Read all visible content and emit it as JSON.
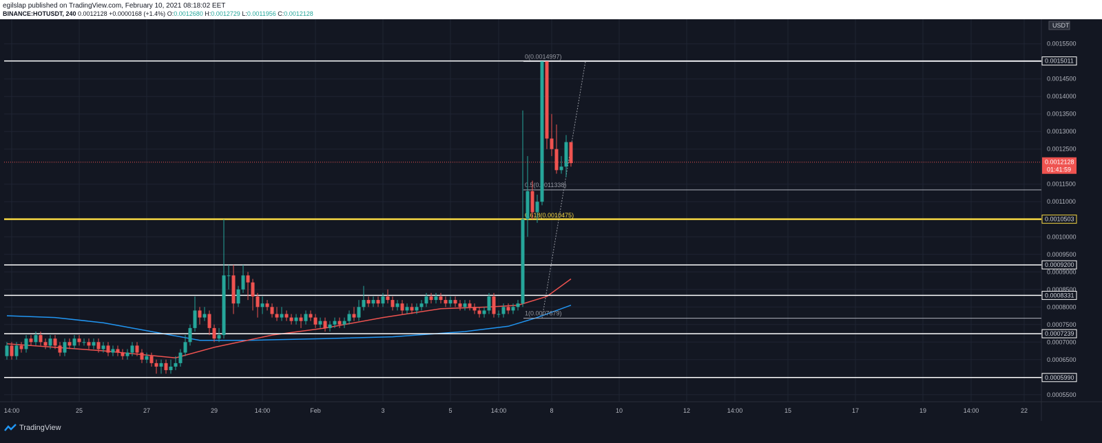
{
  "header": {
    "published_line": "egilslap published on TradingView.com, February 10, 2021 08:18:02 EET",
    "symbol": "BINANCE:HOTUSDT, 240",
    "price": "0.0012128",
    "change": "+0.0000168 (+1.4%)",
    "o_label": "O:",
    "o_value": "0.0012680",
    "h_label": "H:",
    "h_value": "0.0012729",
    "l_label": "L:",
    "l_value": "0.0011956",
    "c_label": "C:",
    "c_value": "0.0012128"
  },
  "footer": {
    "brand": "TradingView",
    "logo_icon": "tradingview-logo-icon"
  },
  "colors": {
    "background": "#131722",
    "up": "#26a69a",
    "down": "#ef5350",
    "ma_fast": "#ef5350",
    "ma_slow": "#2196f3",
    "fib_highlight": "#f5d742",
    "line": "#ffffff"
  },
  "chart_data": {
    "type": "candlestick",
    "currency": "USDT",
    "ylim": [
      0.00053,
      0.00162
    ],
    "price_scale_labels": [
      "0.0015500",
      "0.0015000",
      "0.0014500",
      "0.0014000",
      "0.0013500",
      "0.0013000",
      "0.0012500",
      "0.0011500",
      "0.0011000",
      "0.0010000",
      "0.0009500",
      "0.0009000",
      "0.0008500",
      "0.0008000",
      "0.0007500",
      "0.0007000",
      "0.0006500",
      "0.0005500"
    ],
    "x_ticks": [
      {
        "i": 1,
        "label": "14:00"
      },
      {
        "i": 15,
        "label": "25"
      },
      {
        "i": 29,
        "label": "27"
      },
      {
        "i": 43,
        "label": "29"
      },
      {
        "i": 53,
        "label": "14:00"
      },
      {
        "i": 64,
        "label": "Feb"
      },
      {
        "i": 78,
        "label": "3"
      },
      {
        "i": 92,
        "label": "5"
      },
      {
        "i": 102,
        "label": "14:00"
      },
      {
        "i": 113,
        "label": "8"
      },
      {
        "i": 127,
        "label": "10"
      },
      {
        "i": 141,
        "label": "12"
      },
      {
        "i": 151,
        "label": "14:00"
      },
      {
        "i": 162,
        "label": "15"
      },
      {
        "i": 176,
        "label": "17"
      },
      {
        "i": 190,
        "label": "19"
      },
      {
        "i": 200,
        "label": "14:00"
      },
      {
        "i": 211,
        "label": "22"
      }
    ],
    "horizontal_levels": [
      {
        "price": 0.0015011,
        "label": "0.0015011",
        "color": "#ffffff"
      },
      {
        "price": 0.0010503,
        "label": "0.0010503",
        "color": "#f5d742"
      },
      {
        "price": 0.00092,
        "label": "0.0009200",
        "color": "#ffffff"
      },
      {
        "price": 0.0008331,
        "label": "0.0008331",
        "color": "#ffffff"
      },
      {
        "price": 0.0007239,
        "label": "0.0007239",
        "color": "#ffffff"
      },
      {
        "price": 0.000599,
        "label": "0.0005990",
        "color": "#ffffff"
      }
    ],
    "fib_levels": [
      {
        "price": 0.0014997,
        "label": "0(0.0014997)"
      },
      {
        "price": 0.0011338,
        "label": "0.5(0.0011338)"
      },
      {
        "price": 0.0010475,
        "label": "0.618(0.0010475)"
      },
      {
        "price": 0.0007679,
        "label": "1(0.0007679)"
      }
    ],
    "last_price": {
      "value": "0.0012128",
      "countdown": "01:41:59"
    },
    "candles": [
      [
        0.00066,
        0.00069,
        0.0007,
        0.00065
      ],
      [
        0.00069,
        0.00066,
        0.0007,
        0.00065
      ],
      [
        0.00066,
        0.00069,
        0.0007,
        0.00065
      ],
      [
        0.00069,
        0.00068,
        0.0007,
        0.00067
      ],
      [
        0.00068,
        0.00071,
        0.00072,
        0.00067
      ],
      [
        0.00071,
        0.0007,
        0.00072,
        0.00069
      ],
      [
        0.0007,
        0.00072,
        0.00073,
        0.00069
      ],
      [
        0.00072,
        0.0007,
        0.00073,
        0.00069
      ],
      [
        0.0007,
        0.00069,
        0.00071,
        0.00068
      ],
      [
        0.00069,
        0.00071,
        0.00072,
        0.00068
      ],
      [
        0.00071,
        0.00069,
        0.00072,
        0.00068
      ],
      [
        0.00069,
        0.00067,
        0.0007,
        0.00066
      ],
      [
        0.00067,
        0.0007,
        0.00071,
        0.00066
      ],
      [
        0.0007,
        0.00069,
        0.00071,
        0.00068
      ],
      [
        0.00069,
        0.00071,
        0.00072,
        0.00068
      ],
      [
        0.00071,
        0.0007,
        0.00072,
        0.00069
      ],
      [
        0.0007,
        0.0007,
        0.00071,
        0.00069
      ],
      [
        0.0007,
        0.00069,
        0.00071,
        0.00068
      ],
      [
        0.00069,
        0.0007,
        0.00071,
        0.00068
      ],
      [
        0.0007,
        0.00068,
        0.00071,
        0.00067
      ],
      [
        0.00068,
        0.00069,
        0.0007,
        0.00067
      ],
      [
        0.00069,
        0.00067,
        0.0007,
        0.00066
      ],
      [
        0.00067,
        0.00068,
        0.00069,
        0.00066
      ],
      [
        0.00068,
        0.00067,
        0.00069,
        0.00066
      ],
      [
        0.00067,
        0.00066,
        0.00068,
        0.00065
      ],
      [
        0.00066,
        0.00067,
        0.00068,
        0.00065
      ],
      [
        0.00067,
        0.00069,
        0.0007,
        0.00066
      ],
      [
        0.00069,
        0.00067,
        0.0007,
        0.00066
      ],
      [
        0.00067,
        0.00065,
        0.00068,
        0.00064
      ],
      [
        0.00065,
        0.00066,
        0.00067,
        0.00064
      ],
      [
        0.00066,
        0.00064,
        0.00067,
        0.00063
      ],
      [
        0.00064,
        0.00063,
        0.00065,
        0.00061
      ],
      [
        0.00063,
        0.00064,
        0.00065,
        0.00061
      ],
      [
        0.00064,
        0.00062,
        0.00065,
        0.00061
      ],
      [
        0.00062,
        0.00063,
        0.00065,
        0.00061
      ],
      [
        0.00063,
        0.00064,
        0.00066,
        0.00062
      ],
      [
        0.00064,
        0.00067,
        0.00068,
        0.00063
      ],
      [
        0.00067,
        0.0007,
        0.00072,
        0.00066
      ],
      [
        0.0007,
        0.00074,
        0.00075,
        0.00069
      ],
      [
        0.00074,
        0.00079,
        0.00083,
        0.00073
      ],
      [
        0.00079,
        0.00077,
        0.0008,
        0.00075
      ],
      [
        0.00077,
        0.00078,
        0.0008,
        0.00076
      ],
      [
        0.00078,
        0.00074,
        0.00079,
        0.00072
      ],
      [
        0.00074,
        0.00071,
        0.00075,
        0.0007
      ],
      [
        0.00071,
        0.00072,
        0.00074,
        0.0007
      ],
      [
        0.00072,
        0.00089,
        0.00105,
        0.00071
      ],
      [
        0.00089,
        0.00089,
        0.00092,
        0.00085
      ],
      [
        0.00089,
        0.00081,
        0.00092,
        0.00078
      ],
      [
        0.00081,
        0.00085,
        0.00086,
        0.0008
      ],
      [
        0.00085,
        0.00089,
        0.00092,
        0.00084
      ],
      [
        0.00089,
        0.00087,
        0.0009,
        0.00082
      ],
      [
        0.00087,
        0.00083,
        0.00088,
        0.00079
      ],
      [
        0.00083,
        0.0008,
        0.00084,
        0.00077
      ],
      [
        0.0008,
        0.00081,
        0.00083,
        0.00078
      ],
      [
        0.00081,
        0.0008,
        0.00082,
        0.00079
      ],
      [
        0.0008,
        0.00078,
        0.00081,
        0.00077
      ],
      [
        0.00078,
        0.00077,
        0.0008,
        0.00076
      ],
      [
        0.00077,
        0.00078,
        0.0008,
        0.00076
      ],
      [
        0.00078,
        0.00077,
        0.00079,
        0.00076
      ],
      [
        0.00077,
        0.00076,
        0.00078,
        0.00075
      ],
      [
        0.00076,
        0.00077,
        0.00078,
        0.00075
      ],
      [
        0.00077,
        0.00076,
        0.00078,
        0.00074
      ],
      [
        0.00076,
        0.00078,
        0.00079,
        0.00075
      ],
      [
        0.00078,
        0.00077,
        0.00079,
        0.00076
      ],
      [
        0.00077,
        0.00075,
        0.00078,
        0.00074
      ],
      [
        0.00075,
        0.00076,
        0.00077,
        0.00074
      ],
      [
        0.00076,
        0.00074,
        0.00077,
        0.00073
      ],
      [
        0.00074,
        0.00075,
        0.00076,
        0.00073
      ],
      [
        0.00075,
        0.00076,
        0.00077,
        0.00074
      ],
      [
        0.00076,
        0.00075,
        0.00077,
        0.00074
      ],
      [
        0.00075,
        0.00076,
        0.00077,
        0.00074
      ],
      [
        0.00076,
        0.00078,
        0.00079,
        0.00075
      ],
      [
        0.00078,
        0.00077,
        0.0008,
        0.00076
      ],
      [
        0.00077,
        0.0008,
        0.00082,
        0.00076
      ],
      [
        0.0008,
        0.00082,
        0.00086,
        0.00079
      ],
      [
        0.00082,
        0.00081,
        0.00083,
        0.0008
      ],
      [
        0.00081,
        0.00082,
        0.00083,
        0.0008
      ],
      [
        0.00082,
        0.00081,
        0.00083,
        0.0008
      ],
      [
        0.00081,
        0.00083,
        0.00084,
        0.0008
      ],
      [
        0.00083,
        0.00082,
        0.00085,
        0.00081
      ],
      [
        0.00082,
        0.0008,
        0.00083,
        0.00079
      ],
      [
        0.0008,
        0.00081,
        0.00082,
        0.00079
      ],
      [
        0.00081,
        0.00079,
        0.00082,
        0.00078
      ],
      [
        0.00079,
        0.0008,
        0.00081,
        0.00078
      ],
      [
        0.0008,
        0.00079,
        0.00081,
        0.00078
      ],
      [
        0.00079,
        0.0008,
        0.00081,
        0.00078
      ],
      [
        0.0008,
        0.00081,
        0.00082,
        0.00079
      ],
      [
        0.00081,
        0.00083,
        0.00084,
        0.0008
      ],
      [
        0.00083,
        0.00082,
        0.00084,
        0.00081
      ],
      [
        0.00082,
        0.00083,
        0.00084,
        0.00081
      ],
      [
        0.00083,
        0.00082,
        0.00084,
        0.00081
      ],
      [
        0.00082,
        0.00081,
        0.00083,
        0.0008
      ],
      [
        0.00081,
        0.00082,
        0.00083,
        0.0008
      ],
      [
        0.00082,
        0.00081,
        0.00083,
        0.0008
      ],
      [
        0.00081,
        0.0008,
        0.00082,
        0.00079
      ],
      [
        0.0008,
        0.00081,
        0.00082,
        0.00079
      ],
      [
        0.00081,
        0.0008,
        0.00082,
        0.00079
      ],
      [
        0.0008,
        0.00079,
        0.00081,
        0.00078
      ],
      [
        0.00079,
        0.00078,
        0.0008,
        0.00077
      ],
      [
        0.00078,
        0.00079,
        0.0008,
        0.00077
      ],
      [
        0.00079,
        0.00083,
        0.00084,
        0.00078
      ],
      [
        0.00083,
        0.00078,
        0.00084,
        0.00077
      ],
      [
        0.00078,
        0.00078,
        0.00079,
        0.00077
      ],
      [
        0.00078,
        0.0008,
        0.00081,
        0.00077
      ],
      [
        0.0008,
        0.00079,
        0.00081,
        0.00078
      ],
      [
        0.00079,
        0.0008,
        0.00081,
        0.00078
      ],
      [
        0.0008,
        0.00081,
        0.00082,
        0.00079
      ],
      [
        0.00081,
        0.00105,
        0.00136,
        0.0008
      ],
      [
        0.00105,
        0.00113,
        0.00123,
        0.001
      ],
      [
        0.00113,
        0.00107,
        0.00116,
        0.00105
      ],
      [
        0.00107,
        0.0011,
        0.00112,
        0.00104
      ],
      [
        0.0011,
        0.0015,
        0.0015,
        0.00109
      ],
      [
        0.0015,
        0.00128,
        0.0015,
        0.00125
      ],
      [
        0.00128,
        0.00125,
        0.00135,
        0.00123
      ],
      [
        0.00125,
        0.00119,
        0.00132,
        0.00118
      ],
      [
        0.00119,
        0.0012,
        0.00123,
        0.00118
      ],
      [
        0.0012,
        0.00127,
        0.00129,
        0.00117
      ],
      [
        0.00127,
        0.00121,
        0.00127,
        0.0012
      ]
    ],
    "ma_fast": [
      [
        0,
        0.000695
      ],
      [
        10,
        0.000685
      ],
      [
        20,
        0.000675
      ],
      [
        35,
        0.000655
      ],
      [
        43,
        0.000685
      ],
      [
        55,
        0.00072
      ],
      [
        66,
        0.00074
      ],
      [
        78,
        0.00077
      ],
      [
        90,
        0.000795
      ],
      [
        100,
        0.0008
      ],
      [
        106,
        0.000805
      ],
      [
        112,
        0.00083
      ],
      [
        117,
        0.00088
      ]
    ],
    "ma_slow": [
      [
        0,
        0.000775
      ],
      [
        10,
        0.00077
      ],
      [
        20,
        0.000755
      ],
      [
        30,
        0.00073
      ],
      [
        40,
        0.000705
      ],
      [
        50,
        0.000705
      ],
      [
        66,
        0.00071
      ],
      [
        80,
        0.000715
      ],
      [
        95,
        0.00073
      ],
      [
        104,
        0.000745
      ],
      [
        110,
        0.00077
      ],
      [
        117,
        0.000805
      ]
    ]
  }
}
